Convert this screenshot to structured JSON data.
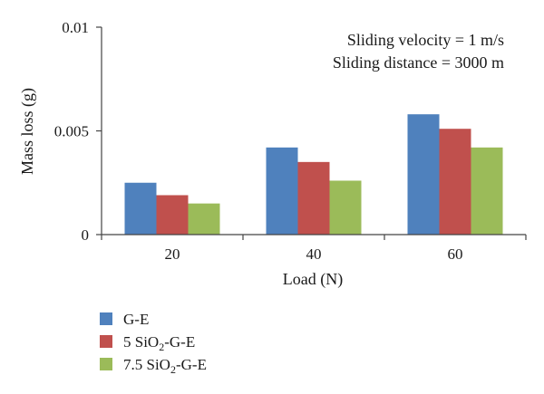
{
  "chart_data": {
    "type": "bar",
    "xlabel": "Load (N)",
    "ylabel": "Mass loss (g)",
    "ylim": [
      0,
      0.01
    ],
    "yticks": [
      "0",
      "0.005",
      "0.01"
    ],
    "ytick_values": [
      0,
      0.005,
      0.01
    ],
    "categories": [
      "20",
      "40",
      "60"
    ],
    "series": [
      {
        "name": "G-E",
        "values": [
          0.0025,
          0.0042,
          0.0058
        ],
        "color": "#4f81bd"
      },
      {
        "name_prefix": "5 SiO",
        "name_sub": "2",
        "name_suffix": "-G-E",
        "values": [
          0.0019,
          0.0035,
          0.0051
        ],
        "color": "#c0504d"
      },
      {
        "name_prefix": "7.5 SiO",
        "name_sub": "2",
        "name_suffix": "-G-E",
        "values": [
          0.0015,
          0.0026,
          0.0042
        ],
        "color": "#9bbb59"
      }
    ],
    "annotations": [
      "Sliding velocity = 1 m/s",
      "Sliding distance = 3000 m"
    ],
    "grid": false,
    "legend_position": "bottom-left"
  }
}
